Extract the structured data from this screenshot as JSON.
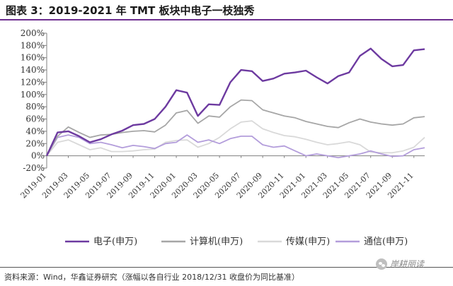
{
  "title": "图表 3：2019-2021 年 TMT 板块中电子一枝独秀",
  "source": "资料来源：Wind，华鑫证券研究（涨幅以各自行业 2018/12/31 收盘价为同比基准）",
  "watermark": "岸耕丽读",
  "colors": {
    "电子": "#6d3aa0",
    "计算机": "#a6a6a6",
    "传媒": "#d9d9d9",
    "通信": "#b39ddb",
    "title_rule": "#6d2d8f"
  },
  "chart_data": {
    "type": "line",
    "title": "",
    "xlabel": "",
    "ylabel": "",
    "ylim": [
      -20,
      200
    ],
    "yticks": [
      "-20%",
      "0%",
      "20%",
      "40%",
      "60%",
      "80%",
      "100%",
      "120%",
      "140%",
      "160%",
      "180%",
      "200%"
    ],
    "ytick_values": [
      -20,
      0,
      20,
      40,
      60,
      80,
      100,
      120,
      140,
      160,
      180,
      200
    ],
    "xticks": [
      "2019-01",
      "2019-03",
      "2019-05",
      "2019-07",
      "2019-09",
      "2019-11",
      "2020-01",
      "2020-03",
      "2020-05",
      "2020-07",
      "2020-09",
      "2020-11",
      "2021-01",
      "2021-03",
      "2021-05",
      "2021-07",
      "2021-09",
      "2021-11"
    ],
    "legend_position": "bottom",
    "grid": false,
    "x": [
      "2019-01",
      "2019-02",
      "2019-03",
      "2019-04",
      "2019-05",
      "2019-06",
      "2019-07",
      "2019-08",
      "2019-09",
      "2019-10",
      "2019-11",
      "2019-12",
      "2020-01",
      "2020-02",
      "2020-03",
      "2020-04",
      "2020-05",
      "2020-06",
      "2020-07",
      "2020-08",
      "2020-09",
      "2020-10",
      "2020-11",
      "2020-12",
      "2021-01",
      "2021-02",
      "2021-03",
      "2021-04",
      "2021-05",
      "2021-06",
      "2021-07",
      "2021-08",
      "2021-09",
      "2021-10",
      "2021-11",
      "2021-12"
    ],
    "series": [
      {
        "name": "电子(申万)",
        "color_key": "电子",
        "values": [
          0,
          38,
          40,
          32,
          22,
          27,
          35,
          41,
          50,
          52,
          60,
          80,
          107,
          103,
          65,
          84,
          83,
          120,
          140,
          138,
          122,
          126,
          134,
          136,
          139,
          128,
          118,
          130,
          136,
          163,
          175,
          158,
          146,
          148,
          172,
          174
        ]
      },
      {
        "name": "计算机(申万)",
        "color_key": "计算机",
        "values": [
          0,
          32,
          47,
          38,
          30,
          34,
          35,
          38,
          40,
          41,
          39,
          50,
          70,
          74,
          53,
          65,
          63,
          80,
          91,
          90,
          75,
          70,
          65,
          62,
          56,
          52,
          48,
          46,
          54,
          60,
          55,
          52,
          50,
          52,
          62,
          64
        ]
      },
      {
        "name": "传媒(申万)",
        "color_key": "传媒",
        "values": [
          0,
          22,
          26,
          18,
          10,
          13,
          7,
          7,
          8,
          10,
          11,
          22,
          25,
          26,
          14,
          20,
          30,
          44,
          55,
          57,
          44,
          38,
          33,
          31,
          27,
          22,
          18,
          20,
          23,
          18,
          6,
          5,
          5,
          8,
          14,
          30
        ]
      },
      {
        "name": "通信(申万)",
        "color_key": "通信",
        "values": [
          0,
          30,
          34,
          30,
          20,
          22,
          18,
          13,
          17,
          15,
          12,
          20,
          22,
          34,
          22,
          26,
          20,
          28,
          32,
          32,
          18,
          14,
          16,
          8,
          0,
          3,
          0,
          -3,
          0,
          3,
          8,
          3,
          -1,
          0,
          10,
          13
        ]
      }
    ]
  }
}
